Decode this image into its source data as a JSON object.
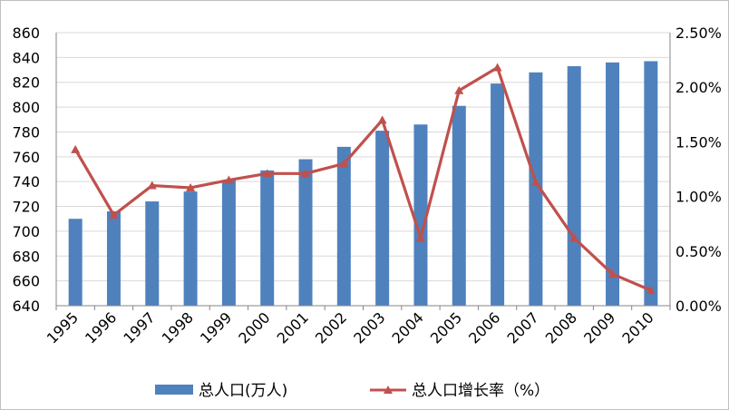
{
  "chart_data": {
    "type": "bar+line",
    "title": "",
    "categories": [
      "1995",
      "1996",
      "1997",
      "1998",
      "1999",
      "2000",
      "2001",
      "2002",
      "2003",
      "2004",
      "2005",
      "2006",
      "2007",
      "2008",
      "2009",
      "2010"
    ],
    "series": [
      {
        "name": "总人口(万人)",
        "type": "bar",
        "axis": "left",
        "color": "#4f81bd",
        "values": [
          710,
          716,
          724,
          732,
          741,
          749,
          758,
          768,
          781,
          786,
          801,
          819,
          828,
          833,
          836,
          837
        ]
      },
      {
        "name": "总人口增长率（%）",
        "type": "line",
        "axis": "right",
        "color": "#c0504d",
        "marker": "triangle",
        "values": [
          1.43,
          0.83,
          1.1,
          1.08,
          1.15,
          1.21,
          1.21,
          1.3,
          1.7,
          0.62,
          1.97,
          2.18,
          1.13,
          0.62,
          0.29,
          0.14
        ]
      }
    ],
    "y_left": {
      "min": 640,
      "max": 860,
      "step": 20,
      "ticks": [
        "640",
        "660",
        "680",
        "700",
        "720",
        "740",
        "760",
        "780",
        "800",
        "820",
        "840",
        "860"
      ]
    },
    "y_right": {
      "min": 0,
      "max": 2.5,
      "step": 0.5,
      "ticks": [
        "0.00%",
        "0.50%",
        "1.00%",
        "1.50%",
        "2.00%",
        "2.50%"
      ]
    },
    "grid": true,
    "legend": "bottom"
  }
}
